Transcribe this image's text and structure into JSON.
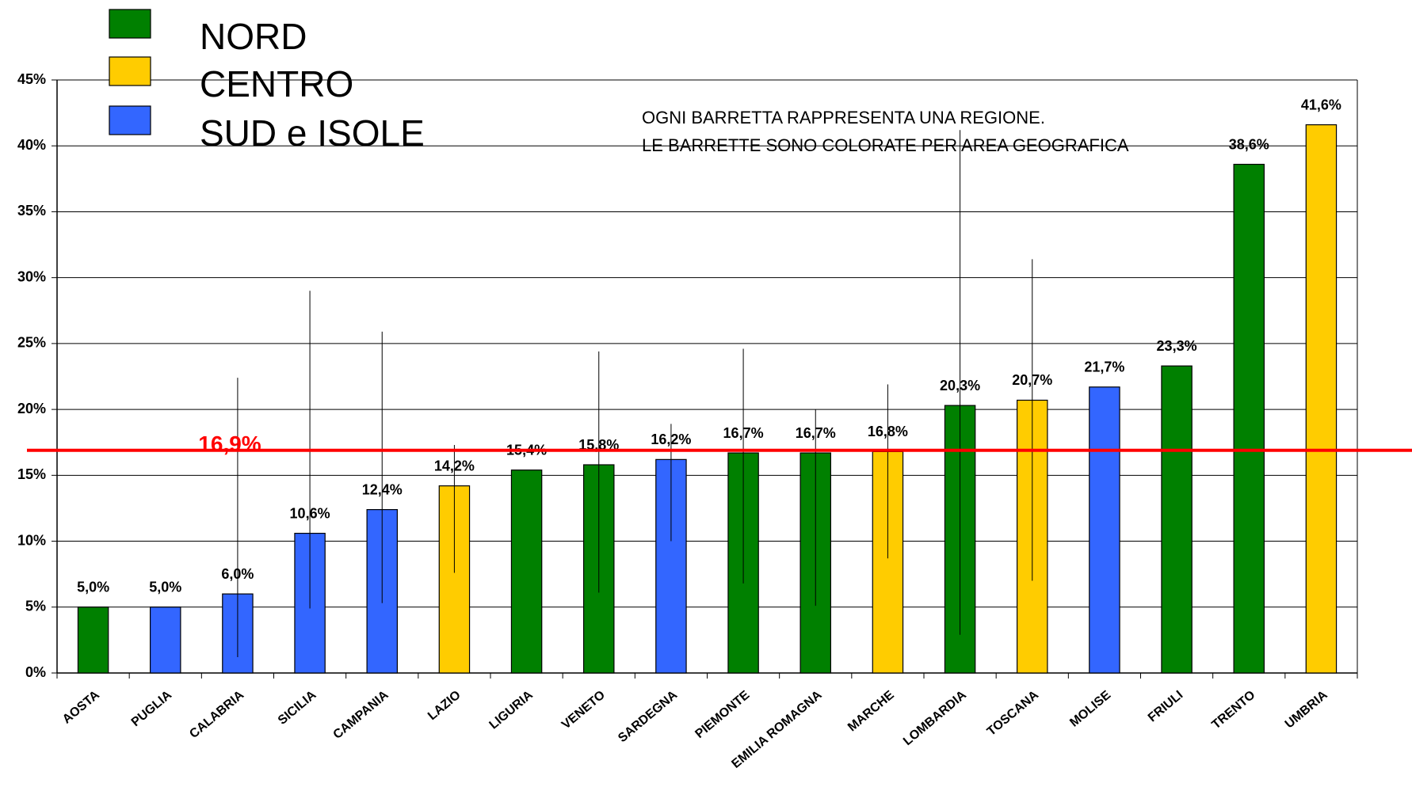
{
  "chart_data": {
    "type": "bar",
    "categories": [
      "AOSTA",
      "PUGLIA",
      "CALABRIA",
      "SICILIA",
      "CAMPANIA",
      "LAZIO",
      "LIGURIA",
      "VENETO",
      "SARDEGNA",
      "PIEMONTE",
      "EMILIA ROMAGNA",
      "MARCHE",
      "LOMBARDIA",
      "TOSCANA",
      "MOLISE",
      "FRIULI",
      "TRENTO",
      "UMBRIA"
    ],
    "values": [
      5.0,
      5.0,
      6.0,
      10.6,
      12.4,
      14.2,
      15.4,
      15.8,
      16.2,
      16.7,
      16.7,
      16.8,
      20.3,
      20.7,
      21.7,
      23.3,
      38.6,
      41.6
    ],
    "value_labels": [
      "5,0%",
      "5,0%",
      "6,0%",
      "10,6%",
      "12,4%",
      "14,2%",
      "15,4%",
      "15,8%",
      "16,2%",
      "16,7%",
      "16,7%",
      "16,8%",
      "20,3%",
      "20,7%",
      "21,7%",
      "23,3%",
      "38,6%",
      "41,6%"
    ],
    "error_low": [
      null,
      null,
      1.2,
      4.9,
      5.3,
      7.6,
      null,
      6.1,
      10.0,
      6.8,
      5.1,
      8.7,
      2.9,
      7.0,
      null,
      null,
      null,
      null
    ],
    "error_high": [
      null,
      null,
      22.4,
      29.0,
      25.9,
      17.3,
      null,
      24.4,
      18.9,
      24.6,
      20.0,
      21.9,
      41.2,
      31.4,
      null,
      null,
      null,
      null
    ],
    "groups": [
      {
        "name": "NORD",
        "color": "#008000"
      },
      {
        "name": "CENTRO",
        "color": "#ffcc00"
      },
      {
        "name": "SUD e ISOLE",
        "color": "#3366ff"
      }
    ],
    "bar_group": [
      0,
      2,
      2,
      2,
      2,
      1,
      0,
      0,
      2,
      0,
      0,
      1,
      0,
      1,
      2,
      0,
      0,
      1
    ],
    "ylim": [
      0,
      45
    ],
    "yticks": [
      {
        "value": 0,
        "label": "0%"
      },
      {
        "value": 5,
        "label": "5%"
      },
      {
        "value": 10,
        "label": "10%"
      },
      {
        "value": 15,
        "label": "15%"
      },
      {
        "value": 20,
        "label": "20%"
      },
      {
        "value": 25,
        "label": "25%"
      },
      {
        "value": 30,
        "label": "30%"
      },
      {
        "value": 35,
        "label": "35%"
      },
      {
        "value": 40,
        "label": "40%"
      },
      {
        "value": 45,
        "label": "45%"
      }
    ],
    "grid": true,
    "reference_line": {
      "value": 16.9,
      "label": "16,9%",
      "color": "#ff0000"
    },
    "annotation": [
      "OGNI BARRETTA RAPPRESENTA UNA REGIONE.",
      "LE BARRETTE SONO COLORATE PER AREA GEOGRAFICA"
    ]
  }
}
